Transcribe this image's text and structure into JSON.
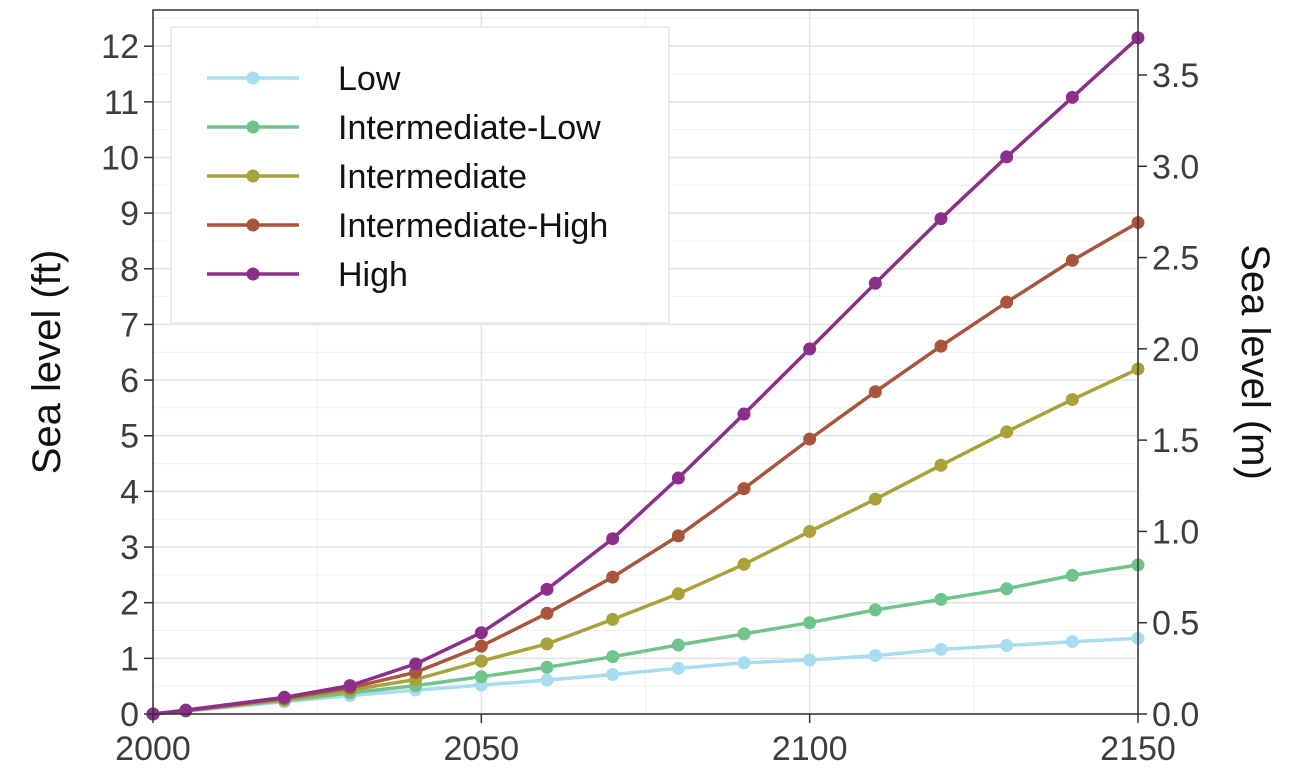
{
  "chart_data": {
    "type": "line",
    "title": "",
    "xlabel": "",
    "ylabel": "Sea level (ft)",
    "y2label": "Sea level (m)",
    "xlim": [
      2000,
      2150
    ],
    "ylim": [
      0,
      12.65
    ],
    "y2lim": [
      0,
      3.856
    ],
    "x_ticks": [
      "2000",
      "2050",
      "2100",
      "2150"
    ],
    "y_ticks": [
      "0",
      "1",
      "2",
      "3",
      "4",
      "5",
      "6",
      "7",
      "8",
      "9",
      "10",
      "11",
      "12"
    ],
    "y2_ticks": [
      "0.0",
      "0.5",
      "1.0",
      "1.5",
      "2.0",
      "2.5",
      "3.0",
      "3.5"
    ],
    "grid": true,
    "legend_position": "top-left",
    "x": [
      2000,
      2005,
      2020,
      2030,
      2040,
      2050,
      2060,
      2070,
      2080,
      2090,
      2100,
      2110,
      2120,
      2130,
      2140,
      2150
    ],
    "series": [
      {
        "name": "Low",
        "color": "#a8dcf0",
        "values": [
          0,
          0.05,
          0.22,
          0.33,
          0.43,
          0.52,
          0.61,
          0.71,
          0.82,
          0.92,
          0.97,
          1.05,
          1.16,
          1.23,
          1.3,
          1.36
        ]
      },
      {
        "name": "Intermediate-Low",
        "color": "#6fc48c",
        "values": [
          0,
          0.06,
          0.24,
          0.38,
          0.51,
          0.67,
          0.84,
          1.03,
          1.24,
          1.44,
          1.64,
          1.87,
          2.06,
          2.25,
          2.49,
          2.68
        ]
      },
      {
        "name": "Intermediate",
        "color": "#a9a23a",
        "values": [
          0,
          0.06,
          0.26,
          0.43,
          0.62,
          0.95,
          1.26,
          1.7,
          2.16,
          2.69,
          3.28,
          3.86,
          4.47,
          5.07,
          5.65,
          6.2
        ]
      },
      {
        "name": "Intermediate-High",
        "color": "#a9553b",
        "values": [
          0,
          0.06,
          0.28,
          0.47,
          0.75,
          1.22,
          1.81,
          2.46,
          3.2,
          4.05,
          4.94,
          5.79,
          6.61,
          7.4,
          8.15,
          8.83
        ]
      },
      {
        "name": "High",
        "color": "#8c2f8a",
        "values": [
          0,
          0.07,
          0.3,
          0.51,
          0.9,
          1.46,
          2.24,
          3.15,
          4.24,
          5.39,
          6.56,
          7.74,
          8.9,
          10.01,
          11.08,
          12.15
        ]
      }
    ]
  }
}
